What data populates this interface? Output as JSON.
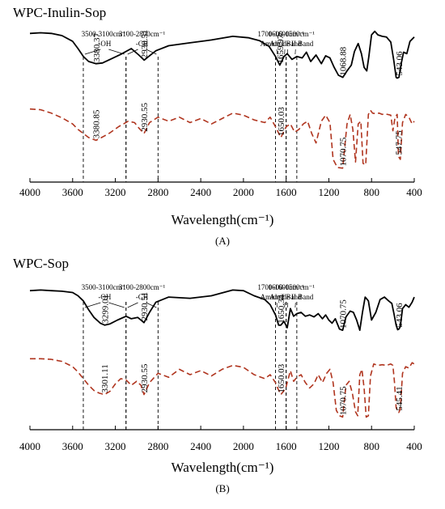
{
  "chart_data": [
    {
      "type": "line",
      "panel_label": "(A)",
      "title": "WPC-Inulin-Sop",
      "xlabel": "Wavelength(cm⁻¹)",
      "ylabel": "",
      "xlim": [
        4000,
        400
      ],
      "x_reversed": true,
      "xticks": [
        "4000",
        "3600",
        "3200",
        "2800",
        "2400",
        "2000",
        "1600",
        "1200",
        "800",
        "400"
      ],
      "grid": false,
      "regions": [
        {
          "range": [
            3500,
            3100
          ],
          "label_top": "3500-3100cm⁻¹",
          "label_bottom": "-OH"
        },
        {
          "range": [
            3100,
            2800
          ],
          "label_top": "3100-2800cm⁻¹",
          "label_bottom": "-CH"
        },
        {
          "range": [
            1700,
            1600
          ],
          "label_top": "1700-1600cm⁻¹",
          "label_bottom": "Amide I Band"
        },
        {
          "range": [
            1600,
            1500
          ],
          "label_top": "1600-1500cm⁻¹",
          "label_bottom": "Amide II Band"
        }
      ],
      "series": [
        {
          "name": "",
          "style": "solid",
          "color": "#000000",
          "x": [
            4000,
            3900,
            3800,
            3700,
            3600,
            3550,
            3500,
            3450,
            3380,
            3320,
            3250,
            3150,
            3050,
            2980,
            2930,
            2880,
            2820,
            2700,
            2500,
            2300,
            2100,
            1950,
            1850,
            1760,
            1700,
            1660,
            1620,
            1590,
            1545,
            1500,
            1450,
            1410,
            1370,
            1320,
            1270,
            1230,
            1190,
            1150,
            1110,
            1069,
            1030,
            990,
            960,
            925,
            895,
            870,
            845,
            825,
            800,
            770,
            740,
            700,
            660,
            620,
            590,
            570,
            560,
            543,
            525,
            500,
            470,
            440,
            400
          ],
          "y": [
            0.94,
            0.95,
            0.94,
            0.91,
            0.83,
            0.73,
            0.62,
            0.55,
            0.52,
            0.53,
            0.58,
            0.65,
            0.73,
            0.64,
            0.57,
            0.63,
            0.7,
            0.77,
            0.81,
            0.85,
            0.9,
            0.88,
            0.84,
            0.76,
            0.62,
            0.5,
            0.62,
            0.66,
            0.58,
            0.62,
            0.6,
            0.68,
            0.55,
            0.64,
            0.52,
            0.63,
            0.6,
            0.47,
            0.36,
            0.33,
            0.42,
            0.5,
            0.69,
            0.8,
            0.66,
            0.47,
            0.42,
            0.62,
            0.92,
            0.97,
            0.92,
            0.9,
            0.89,
            0.82,
            0.55,
            0.33,
            0.32,
            0.33,
            0.5,
            0.68,
            0.66,
            0.83,
            0.89
          ]
        },
        {
          "name": "",
          "style": "dashed",
          "color": "#b0351f",
          "x": [
            4000,
            3900,
            3800,
            3700,
            3600,
            3550,
            3500,
            3450,
            3381,
            3330,
            3260,
            3170,
            3080,
            3020,
            2980,
            2931,
            2880,
            2800,
            2700,
            2600,
            2500,
            2400,
            2300,
            2200,
            2100,
            2000,
            1900,
            1800,
            1750,
            1700,
            1650,
            1600,
            1560,
            1520,
            1480,
            1440,
            1400,
            1360,
            1320,
            1270,
            1230,
            1190,
            1160,
            1120,
            1071,
            1030,
            1000,
            975,
            950,
            925,
            900,
            880,
            855,
            830,
            810,
            790,
            760,
            730,
            700,
            680,
            650,
            620,
            600,
            580,
            560,
            548,
            530,
            510,
            480,
            450,
            420,
            400
          ],
          "y": [
            0.92,
            0.91,
            0.86,
            0.79,
            0.7,
            0.62,
            0.56,
            0.5,
            0.46,
            0.5,
            0.56,
            0.66,
            0.74,
            0.72,
            0.64,
            0.56,
            0.72,
            0.8,
            0.74,
            0.8,
            0.72,
            0.78,
            0.7,
            0.78,
            0.86,
            0.83,
            0.76,
            0.72,
            0.8,
            0.66,
            0.5,
            0.66,
            0.7,
            0.58,
            0.62,
            0.7,
            0.74,
            0.56,
            0.42,
            0.74,
            0.83,
            0.72,
            0.18,
            0.06,
            0.05,
            0.7,
            0.84,
            0.62,
            0.14,
            0.7,
            0.74,
            0.12,
            0.1,
            0.84,
            0.9,
            0.86,
            0.85,
            0.86,
            0.84,
            0.85,
            0.84,
            0.83,
            0.6,
            0.8,
            0.84,
            0.22,
            0.18,
            0.72,
            0.84,
            0.8,
            0.7,
            0.74
          ]
        }
      ],
      "annotations": [
        {
          "x": 3380.37,
          "series": 0,
          "text": "3380.37"
        },
        {
          "x": 2930.51,
          "series": 0,
          "text": "2930.51"
        },
        {
          "x": 1659.97,
          "series": 0,
          "text": "1659.97"
        },
        {
          "x": 1068.88,
          "series": 0,
          "text": "1068.88"
        },
        {
          "x": 543.06,
          "series": 0,
          "text": "543.06"
        },
        {
          "x": 3380.85,
          "series": 1,
          "text": "3380.85"
        },
        {
          "x": 2930.55,
          "series": 1,
          "text": "2930.55"
        },
        {
          "x": 1650.03,
          "series": 1,
          "text": "1650.03"
        },
        {
          "x": 1070.75,
          "series": 1,
          "text": "1070.75"
        },
        {
          "x": 547.75,
          "series": 1,
          "text": "547.75"
        }
      ]
    },
    {
      "type": "line",
      "panel_label": "(B)",
      "title": "WPC-Sop",
      "xlabel": "Wavelength(cm⁻¹)",
      "ylabel": "",
      "xlim": [
        4000,
        400
      ],
      "x_reversed": true,
      "xticks": [
        "4000",
        "3600",
        "3200",
        "2800",
        "2400",
        "2000",
        "1600",
        "1200",
        "800",
        "400"
      ],
      "grid": false,
      "regions": [
        {
          "range": [
            3500,
            3100
          ],
          "label_top": "3500-3100cm⁻¹",
          "label_bottom": "-OH"
        },
        {
          "range": [
            3100,
            2800
          ],
          "label_top": "3100-2800cm⁻¹",
          "label_bottom": "-CH"
        },
        {
          "range": [
            1700,
            1600
          ],
          "label_top": "1700-1600cm⁻¹",
          "label_bottom": "Amide I Band"
        },
        {
          "range": [
            1600,
            1500
          ],
          "label_top": "1600-1500cm⁻¹",
          "label_bottom": "Amide II Band"
        }
      ],
      "series": [
        {
          "name": "",
          "style": "solid",
          "color": "#000000",
          "x": [
            4000,
            3900,
            3800,
            3700,
            3600,
            3550,
            3500,
            3450,
            3400,
            3340,
            3299,
            3250,
            3180,
            3100,
            3050,
            2990,
            2931,
            2880,
            2820,
            2700,
            2500,
            2300,
            2100,
            2000,
            1900,
            1800,
            1750,
            1700,
            1670,
            1650,
            1620,
            1590,
            1560,
            1530,
            1500,
            1460,
            1420,
            1380,
            1340,
            1300,
            1260,
            1230,
            1200,
            1170,
            1140,
            1100,
            1071,
            1040,
            1000,
            970,
            940,
            910,
            885,
            860,
            830,
            800,
            760,
            720,
            680,
            640,
            610,
            590,
            570,
            555,
            543,
            530,
            510,
            480,
            450,
            420,
            400
          ],
          "y": [
            0.96,
            0.97,
            0.96,
            0.95,
            0.93,
            0.88,
            0.8,
            0.66,
            0.54,
            0.45,
            0.42,
            0.44,
            0.5,
            0.56,
            0.52,
            0.54,
            0.46,
            0.62,
            0.78,
            0.86,
            0.84,
            0.88,
            0.97,
            0.96,
            0.88,
            0.82,
            0.74,
            0.58,
            0.42,
            0.42,
            0.48,
            0.38,
            0.68,
            0.56,
            0.6,
            0.62,
            0.56,
            0.58,
            0.55,
            0.6,
            0.52,
            0.58,
            0.5,
            0.45,
            0.52,
            0.36,
            0.34,
            0.55,
            0.64,
            0.62,
            0.5,
            0.34,
            0.62,
            0.86,
            0.8,
            0.5,
            0.62,
            0.82,
            0.86,
            0.8,
            0.76,
            0.6,
            0.42,
            0.35,
            0.36,
            0.4,
            0.68,
            0.74,
            0.7,
            0.78,
            0.86
          ]
        },
        {
          "name": "",
          "style": "dashed",
          "color": "#b0351f",
          "x": [
            4000,
            3900,
            3800,
            3700,
            3600,
            3550,
            3500,
            3450,
            3400,
            3350,
            3301,
            3250,
            3200,
            3150,
            3100,
            3050,
            3000,
            2960,
            2931,
            2880,
            2800,
            2700,
            2600,
            2500,
            2400,
            2300,
            2200,
            2100,
            2000,
            1900,
            1800,
            1750,
            1700,
            1680,
            1650,
            1620,
            1600,
            1560,
            1530,
            1500,
            1460,
            1420,
            1380,
            1340,
            1300,
            1260,
            1220,
            1190,
            1160,
            1130,
            1100,
            1071,
            1040,
            1010,
            980,
            950,
            930,
            910,
            890,
            870,
            850,
            830,
            810,
            780,
            740,
            700,
            660,
            620,
            600,
            585,
            570,
            555,
            545,
            530,
            510,
            480,
            450,
            420,
            400
          ],
          "y": [
            0.96,
            0.96,
            0.95,
            0.92,
            0.84,
            0.76,
            0.66,
            0.56,
            0.48,
            0.44,
            0.42,
            0.47,
            0.58,
            0.66,
            0.64,
            0.56,
            0.62,
            0.56,
            0.42,
            0.6,
            0.74,
            0.68,
            0.8,
            0.72,
            0.78,
            0.7,
            0.8,
            0.86,
            0.83,
            0.72,
            0.66,
            0.72,
            0.6,
            0.52,
            0.42,
            0.48,
            0.54,
            0.78,
            0.62,
            0.68,
            0.72,
            0.6,
            0.52,
            0.58,
            0.72,
            0.6,
            0.74,
            0.8,
            0.6,
            0.18,
            0.1,
            0.08,
            0.56,
            0.62,
            0.44,
            0.16,
            0.1,
            0.72,
            0.8,
            0.52,
            0.08,
            0.1,
            0.7,
            0.88,
            0.86,
            0.87,
            0.86,
            0.88,
            0.86,
            0.6,
            0.22,
            0.18,
            0.15,
            0.2,
            0.74,
            0.84,
            0.82,
            0.9,
            0.88
          ]
        }
      ],
      "annotations": [
        {
          "x": 3299.01,
          "series": 0,
          "text": "3299.01"
        },
        {
          "x": 2930.51,
          "series": 0,
          "text": "2930.51"
        },
        {
          "x": 1650.34,
          "series": 0,
          "text": "1650.34"
        },
        {
          "x": 1070.75,
          "series": 0,
          "text": "1070.75"
        },
        {
          "x": 543.06,
          "series": 0,
          "text": "543.06"
        },
        {
          "x": 3301.11,
          "series": 1,
          "text": "3301.11"
        },
        {
          "x": 2930.55,
          "series": 1,
          "text": "2930.55"
        },
        {
          "x": 1650.03,
          "series": 1,
          "text": "1650.03"
        },
        {
          "x": 1070.75,
          "series": 1,
          "text": "1070.75"
        },
        {
          "x": 545.41,
          "series": 1,
          "text": "545.41"
        }
      ]
    }
  ]
}
